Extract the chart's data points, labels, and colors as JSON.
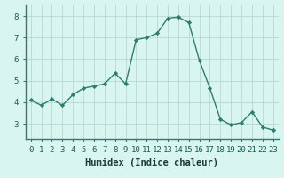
{
  "x": [
    0,
    1,
    2,
    3,
    4,
    5,
    6,
    7,
    8,
    9,
    10,
    11,
    12,
    13,
    14,
    15,
    16,
    17,
    18,
    19,
    20,
    21,
    22,
    23
  ],
  "y": [
    4.1,
    3.85,
    4.15,
    3.85,
    4.35,
    4.65,
    4.75,
    4.85,
    5.35,
    4.85,
    6.9,
    7.0,
    7.2,
    7.9,
    7.95,
    7.7,
    5.95,
    4.65,
    3.2,
    2.95,
    3.05,
    3.55,
    2.85,
    2.7
  ],
  "line_color": "#2e7d70",
  "marker": "D",
  "marker_size": 2.2,
  "line_width": 1.0,
  "bg_color": "#d8f5f0",
  "grid_color": "#b8d8d2",
  "xlabel": "Humidex (Indice chaleur)",
  "xlabel_fontsize": 7.5,
  "tick_fontsize": 6.5,
  "ylim": [
    2.3,
    8.5
  ],
  "xlim": [
    -0.5,
    23.5
  ],
  "yticks": [
    3,
    4,
    5,
    6,
    7,
    8
  ],
  "xticks": [
    0,
    1,
    2,
    3,
    4,
    5,
    6,
    7,
    8,
    9,
    10,
    11,
    12,
    13,
    14,
    15,
    16,
    17,
    18,
    19,
    20,
    21,
    22,
    23
  ]
}
